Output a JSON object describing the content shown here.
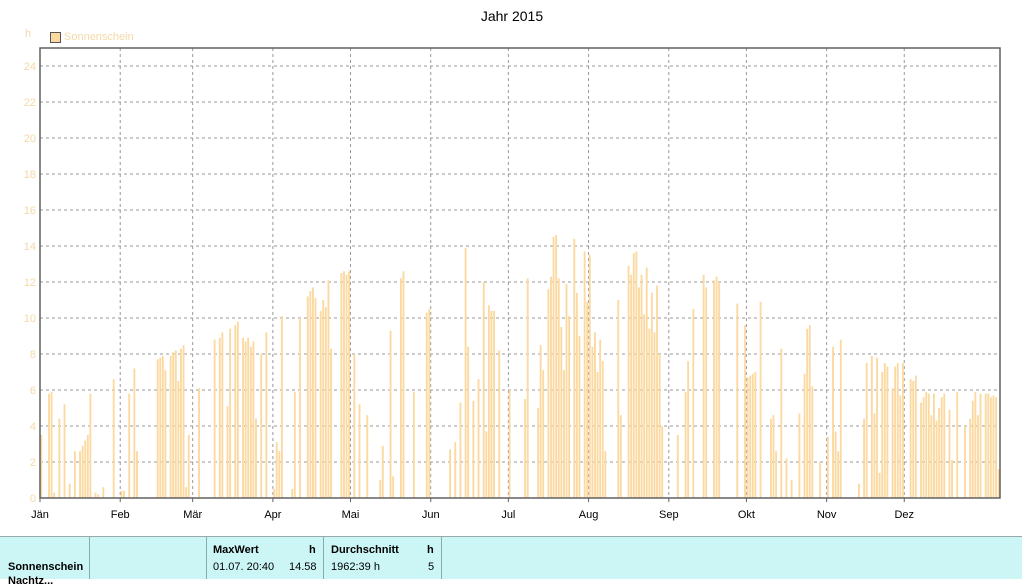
{
  "chart_data": {
    "type": "bar",
    "title": "Jahr 2015",
    "ylabel": "h",
    "ylim": [
      0,
      25
    ],
    "yticks": [
      0,
      2,
      4,
      6,
      8,
      10,
      12,
      14,
      16,
      18,
      20,
      22,
      24
    ],
    "grid": true,
    "legend_position": "top-left",
    "x_ticks": [
      "Jän",
      "Feb",
      "Mär",
      "Apr",
      "Mai",
      "Jun",
      "Jul",
      "Aug",
      "Sep",
      "Okt",
      "Nov",
      "Dez"
    ],
    "series": [
      {
        "name": "Sonnenschein",
        "color": "#fbd9a0",
        "values": [
          3.5,
          0,
          0,
          5.8,
          5.9,
          0.3,
          0,
          4.4,
          0,
          5.2,
          0,
          0.8,
          0,
          2.6,
          0,
          2.6,
          2.9,
          3.2,
          3.5,
          5.8,
          0,
          0.3,
          0.2,
          0,
          0.6,
          0,
          0,
          0,
          6.6,
          0,
          0,
          0.4,
          0.4,
          0,
          5.8,
          0,
          7.2,
          2.6,
          0,
          0,
          0,
          0,
          0,
          0,
          0,
          7.7,
          7.8,
          7.9,
          7.1,
          0,
          7.9,
          8.1,
          8.2,
          6.5,
          8.3,
          8.5,
          0.6,
          3.5,
          0,
          0,
          0,
          6.1,
          0,
          0,
          0,
          0,
          0,
          8.8,
          0,
          8.9,
          9.2,
          0,
          5.1,
          9.4,
          0,
          9.6,
          9.8,
          0,
          8.9,
          8.7,
          8.9,
          8.4,
          8.7,
          4.4,
          0,
          8.0,
          0,
          9.2,
          0,
          0,
          0.5,
          3.1,
          2.6,
          10.1,
          0,
          0,
          0,
          0.5,
          5.9,
          0,
          10.0,
          0,
          0,
          11.2,
          11.5,
          11.7,
          11.1,
          0,
          10.4,
          11.0,
          10.6,
          12.1,
          8.3,
          0,
          0,
          0,
          12.5,
          12.6,
          12.4,
          12.6,
          0,
          8.0,
          0,
          5.2,
          0,
          0,
          4.6,
          0,
          0,
          0,
          0,
          1.0,
          2.9,
          0,
          0,
          9.3,
          1.2,
          0,
          0,
          12.2,
          12.6,
          0,
          0,
          0,
          5.9,
          0,
          0,
          0,
          0,
          10.3,
          10.5,
          0,
          0,
          0,
          0,
          0,
          0,
          0,
          2.7,
          0,
          3.1,
          0,
          5.3,
          0,
          13.9,
          8.4,
          0,
          5.4,
          0,
          6.6,
          0,
          12.0,
          3.7,
          10.7,
          10.4,
          10.4,
          0,
          8.2,
          0,
          0,
          0,
          6.0,
          0,
          0,
          0,
          0,
          0,
          5.5,
          12.2,
          0,
          0,
          0,
          5.0,
          8.5,
          7.1,
          0,
          11.6,
          12.3,
          14.5,
          14.6,
          12.2,
          9.5,
          7.1,
          11.9,
          10.1,
          0,
          14.4,
          11.4,
          9.0,
          0,
          13.7,
          10.9,
          13.5,
          8.4,
          9.2,
          7.0,
          8.8,
          7.6,
          2.6,
          0,
          0,
          0,
          0,
          11.0,
          4.6,
          0,
          0,
          12.9,
          12.4,
          13.6,
          13.7,
          11.7,
          12.4,
          10.2,
          12.8,
          9.4,
          11.4,
          9.2,
          11.8,
          8.0,
          4.0,
          0,
          0,
          0,
          0,
          0,
          3.5,
          0,
          0,
          5.9,
          7.6,
          0,
          10.5,
          0,
          0,
          0,
          12.4,
          11.7,
          0,
          0,
          12.1,
          12.3,
          12.0,
          0,
          0,
          0,
          0,
          0,
          0,
          10.8,
          0,
          0,
          9.6,
          6.7,
          6.8,
          6.9,
          7.0,
          0,
          10.9,
          0,
          0,
          0,
          4.4,
          4.6,
          2.6,
          0,
          8.3,
          0,
          2.2,
          0,
          1.0,
          0,
          0,
          4.7,
          0,
          6.9,
          9.4,
          9.6,
          6.2,
          0,
          0,
          2.0,
          0,
          0,
          3.4,
          0,
          8.4,
          3.7,
          2.6,
          8.8,
          0,
          0,
          0,
          0,
          0,
          0,
          0.8,
          0,
          4.4,
          7.5,
          0,
          7.9,
          4.7,
          7.8,
          1.4,
          7.0,
          7.5,
          7.3,
          0,
          6.1,
          7.3,
          7.5,
          5.7,
          7.5,
          0,
          0,
          6.6,
          6.5,
          6.8,
          0,
          5.3,
          5.6,
          5.9,
          5.8,
          4.6,
          5.8,
          4.3,
          5.0,
          5.6,
          5.8,
          0,
          4.9,
          2.1,
          0,
          5.9,
          0,
          0,
          4.0,
          0,
          4.4,
          5.4,
          5.9,
          4.6,
          5.8,
          0,
          5.8,
          5.8,
          5.6,
          5.7,
          5.6,
          1.6
        ]
      }
    ]
  },
  "stats_panel": {
    "series_label": "Sonnenschein",
    "max_header": "MaxWert",
    "max_unit": "h",
    "max_timestamp": "01.07.  20:40",
    "max_value": "14.58",
    "avg_header": "Durchschnitt",
    "avg_unit": "h",
    "avg_total": "1962:39 h",
    "avg_value": "5",
    "next_row_label": "Nachtz..."
  }
}
